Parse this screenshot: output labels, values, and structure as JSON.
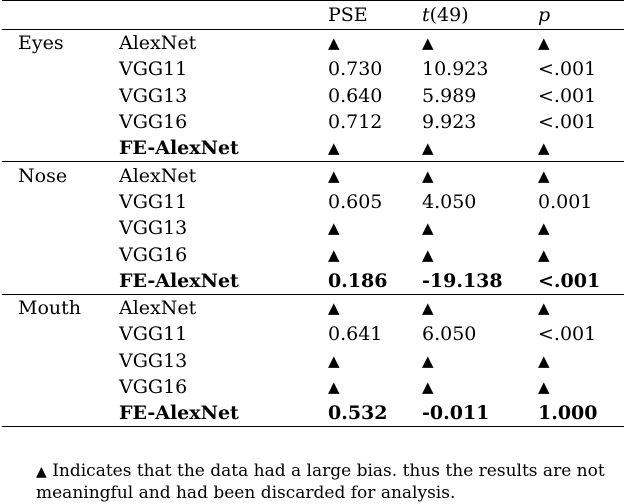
{
  "headers": [
    "",
    "",
    "PSE",
    "t(49)",
    "p"
  ],
  "header_t_var": "t",
  "header_t_arg": "(49)",
  "groups": [
    {
      "name": "Eyes",
      "rows": [
        {
          "model": "AlexNet",
          "bold": false,
          "pse": "▲",
          "t": "▲",
          "p": "▲"
        },
        {
          "model": "VGG11",
          "bold": false,
          "pse": "0.730",
          "t": "10.923",
          "p": "<.001"
        },
        {
          "model": "VGG13",
          "bold": false,
          "pse": "0.640",
          "t": "5.989",
          "p": "<.001"
        },
        {
          "model": "VGG16",
          "bold": false,
          "pse": "0.712",
          "t": "9.923",
          "p": "<.001"
        },
        {
          "model": "FE-AlexNet",
          "bold": true,
          "pse": "▲",
          "t": "▲",
          "p": "▲"
        }
      ]
    },
    {
      "name": "Nose",
      "rows": [
        {
          "model": "AlexNet",
          "bold": false,
          "pse": "▲",
          "t": "▲",
          "p": "▲"
        },
        {
          "model": "VGG11",
          "bold": false,
          "pse": "0.605",
          "t": "4.050",
          "p": "0.001"
        },
        {
          "model": "VGG13",
          "bold": false,
          "pse": "▲",
          "t": "▲",
          "p": "▲"
        },
        {
          "model": "VGG16",
          "bold": false,
          "pse": "▲",
          "t": "▲",
          "p": "▲"
        },
        {
          "model": "FE-AlexNet",
          "bold": true,
          "pse": "0.186",
          "t": "-19.138",
          "p": "<.001"
        }
      ]
    },
    {
      "name": "Mouth",
      "rows": [
        {
          "model": "AlexNet",
          "bold": false,
          "pse": "▲",
          "t": "▲",
          "p": "▲"
        },
        {
          "model": "VGG11",
          "bold": false,
          "pse": "0.641",
          "t": "6.050",
          "p": "<.001"
        },
        {
          "model": "VGG13",
          "bold": false,
          "pse": "▲",
          "t": "▲",
          "p": "▲"
        },
        {
          "model": "VGG16",
          "bold": false,
          "pse": "▲",
          "t": "▲",
          "p": "▲"
        },
        {
          "model": "FE-AlexNet",
          "bold": true,
          "pse": "0.532",
          "t": "-0.011",
          "p": "1.000"
        }
      ]
    }
  ],
  "footnote": {
    "symbol": "▲",
    "text": "Indicates that the data had a large bias. thus the results are not meaningful and had been discarded for analysis."
  }
}
